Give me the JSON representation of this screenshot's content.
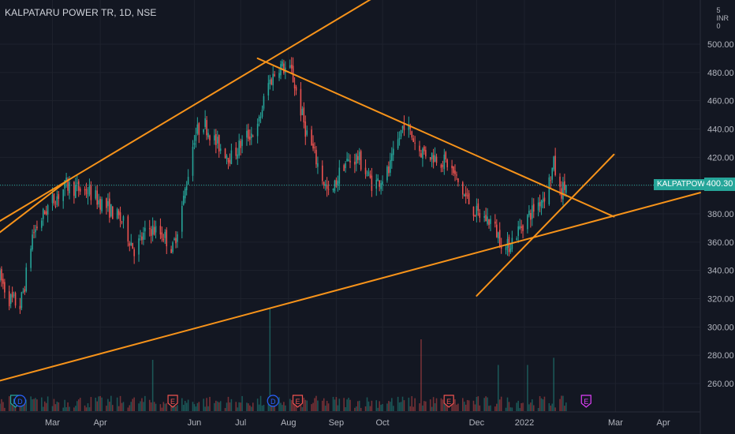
{
  "header": {
    "symbol_title": "KALPATARU POWER TR, 1D, NSE",
    "currency_top": "5",
    "currency_code": "INR",
    "currency_bottom": "0"
  },
  "last_price_tag": {
    "symbol": "KALPATPOWR",
    "price": "400.30",
    "color": "#26a69a"
  },
  "colors": {
    "background": "#131722",
    "up": "#26a69a",
    "down": "#ef5350",
    "trendline": "#f7931a",
    "grid": "#1e222d",
    "axis_text": "#b2b5be"
  },
  "events": [
    {
      "label": "E",
      "kind": "earnings",
      "date": "2021-02-05",
      "color": "#26a69a"
    },
    {
      "label": "D",
      "kind": "dividend",
      "date": "2021-02-08",
      "color": "#2962ff"
    },
    {
      "label": "E",
      "kind": "earnings",
      "date": "2021-05-18",
      "color": "#ef5350"
    },
    {
      "label": "D",
      "kind": "dividend",
      "date": "2021-07-22",
      "color": "#2962ff"
    },
    {
      "label": "E",
      "kind": "earnings",
      "date": "2021-08-07",
      "color": "#ef5350"
    },
    {
      "label": "E",
      "kind": "earnings",
      "date": "2021-11-13",
      "color": "#ef5350"
    },
    {
      "label": "E",
      "kind": "earnings",
      "date": "2022-02-10",
      "color": "#e040fb"
    }
  ],
  "chart_data": {
    "type": "candlestick",
    "title": "KALPATARU POWER TR, 1D, NSE",
    "xlabel": "",
    "ylabel": "",
    "y_unit": "INR",
    "xlim": [
      "2021-01-26",
      "2022-04-25"
    ],
    "ylim": [
      240,
      510
    ],
    "x_tick_labels": [
      "Mar",
      "Apr",
      "Jun",
      "Jul",
      "Aug",
      "Sep",
      "Oct",
      "Dec",
      "2022",
      "Mar",
      "Apr"
    ],
    "x_tick_dates": [
      "2021-03-01",
      "2021-04-01",
      "2021-06-01",
      "2021-07-01",
      "2021-08-01",
      "2021-09-01",
      "2021-10-01",
      "2021-12-01",
      "2022-01-01",
      "2022-03-01",
      "2022-04-01"
    ],
    "y_tick_labels": [
      "260.00",
      "280.00",
      "300.00",
      "320.00",
      "340.00",
      "360.00",
      "380.00",
      "400.00",
      "420.00",
      "440.00",
      "460.00",
      "480.00",
      "500.00"
    ],
    "last_price": 400.3,
    "grid": true,
    "price_path": [
      [
        "2021-01-26",
        335
      ],
      [
        "2021-02-01",
        320
      ],
      [
        "2021-02-08",
        315
      ],
      [
        "2021-02-11",
        330
      ],
      [
        "2021-02-16",
        365
      ],
      [
        "2021-02-26",
        385
      ],
      [
        "2021-03-10",
        400
      ],
      [
        "2021-03-25",
        395
      ],
      [
        "2021-04-05",
        385
      ],
      [
        "2021-04-15",
        375
      ],
      [
        "2021-04-23",
        355
      ],
      [
        "2021-05-03",
        370
      ],
      [
        "2021-05-12",
        365
      ],
      [
        "2021-05-18",
        355
      ],
      [
        "2021-05-25",
        390
      ],
      [
        "2021-06-01",
        435
      ],
      [
        "2021-06-07",
        445
      ],
      [
        "2021-06-15",
        430
      ],
      [
        "2021-06-25",
        420
      ],
      [
        "2021-07-05",
        435
      ],
      [
        "2021-07-12",
        440
      ],
      [
        "2021-07-18",
        470
      ],
      [
        "2021-07-26",
        485
      ],
      [
        "2021-08-03",
        480
      ],
      [
        "2021-08-12",
        440
      ],
      [
        "2021-08-20",
        415
      ],
      [
        "2021-08-28",
        390
      ],
      [
        "2021-09-05",
        415
      ],
      [
        "2021-09-15",
        420
      ],
      [
        "2021-09-25",
        400
      ],
      [
        "2021-10-05",
        410
      ],
      [
        "2021-10-15",
        445
      ],
      [
        "2021-10-25",
        425
      ],
      [
        "2021-11-05",
        420
      ],
      [
        "2021-11-13",
        415
      ],
      [
        "2021-11-22",
        395
      ],
      [
        "2021-12-01",
        380
      ],
      [
        "2021-12-10",
        375
      ],
      [
        "2021-12-20",
        355
      ],
      [
        "2022-01-01",
        375
      ],
      [
        "2022-01-08",
        385
      ],
      [
        "2022-01-15",
        395
      ],
      [
        "2022-01-20",
        415
      ],
      [
        "2022-01-24",
        395
      ],
      [
        "2022-01-28",
        400
      ]
    ],
    "volume_spikes": [
      {
        "date": "2021-05-05",
        "relative": 0.5
      },
      {
        "date": "2021-07-20",
        "relative": 1.0
      },
      {
        "date": "2021-09-04",
        "relative": 0.5
      },
      {
        "date": "2021-10-26",
        "relative": 0.7
      },
      {
        "date": "2021-12-15",
        "relative": 0.45
      },
      {
        "date": "2022-01-03",
        "relative": 0.45
      },
      {
        "date": "2022-01-20",
        "relative": 0.52
      }
    ],
    "trendlines": [
      {
        "name": "upper-channel",
        "start": [
          "2021-01-26",
          375
        ],
        "end": [
          "2021-10-06",
          540
        ]
      },
      {
        "name": "lower-support",
        "start": [
          "2021-01-26",
          262
        ],
        "end": [
          "2022-04-25",
          395
        ]
      },
      {
        "name": "descending-resistance",
        "start": [
          "2021-07-12",
          490
        ],
        "end": [
          "2022-02-28",
          378
        ]
      },
      {
        "name": "short-uptrend",
        "start": [
          "2021-12-01",
          322
        ],
        "end": [
          "2022-02-28",
          422
        ]
      },
      {
        "name": "left-rising",
        "start": [
          "2021-01-26",
          367
        ],
        "end": [
          "2021-03-10",
          403
        ]
      }
    ]
  }
}
